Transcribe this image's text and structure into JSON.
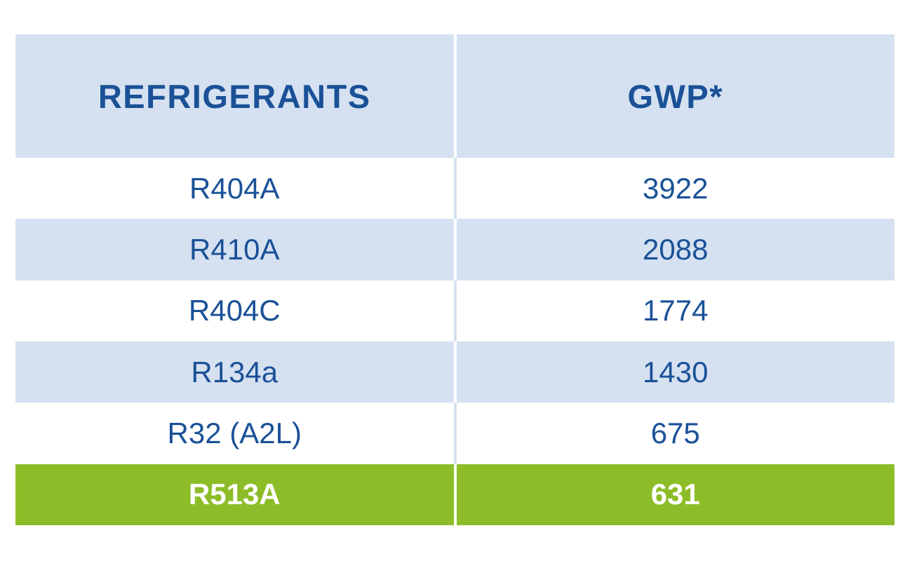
{
  "colors": {
    "light-blue": "#d5e1f1",
    "dark-blue": "#1a5197",
    "green": "#8cbd28",
    "white": "#ffffff"
  },
  "table": {
    "columns": [
      {
        "label": "REFRIGERANTS"
      },
      {
        "label": "GWP*"
      }
    ],
    "rows": [
      {
        "refrigerant": "R404A",
        "gwp": "3922"
      },
      {
        "refrigerant": "R410A",
        "gwp": "2088"
      },
      {
        "refrigerant": "R404C",
        "gwp": "1774"
      },
      {
        "refrigerant": "R134a",
        "gwp": "1430"
      },
      {
        "refrigerant": "R32 (A2L)",
        "gwp": "675"
      },
      {
        "refrigerant": "R513A",
        "gwp": "631"
      }
    ]
  },
  "chart_data": {
    "type": "table",
    "columns": [
      "REFRIGERANTS",
      "GWP*"
    ],
    "rows": [
      [
        "R404A",
        3922
      ],
      [
        "R410A",
        2088
      ],
      [
        "R404C",
        1774
      ],
      [
        "R134a",
        1430
      ],
      [
        "R32 (A2L)",
        675
      ],
      [
        "R513A",
        631
      ]
    ],
    "highlighted_row": "R513A",
    "highlight_color": "#8cbd28",
    "notes": "GWP* header carries an asterisk footnote marker; R513A row highlighted green with white bold text"
  }
}
